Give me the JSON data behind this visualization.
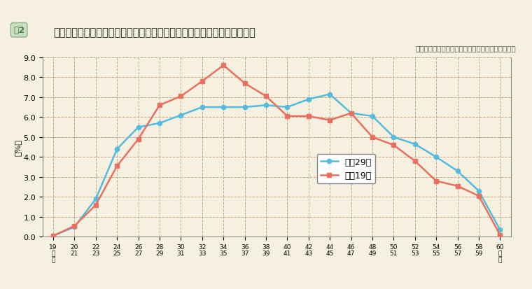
{
  "title": "年齢階層別人員構成比（行政職俸給表（一）適用職員）の変化（本府省）",
  "subtitle": "（人事院　国家公務員給与等実態調査により集計）",
  "ylabel": "（%）",
  "fig2_label": "図2",
  "ylim": [
    0.0,
    9.0
  ],
  "yticks": [
    0.0,
    1.0,
    2.0,
    3.0,
    4.0,
    5.0,
    6.0,
    7.0,
    8.0,
    9.0
  ],
  "x_labels": [
    "19\n以\n下",
    "20\n21",
    "22\n23",
    "24\n25",
    "26\n27",
    "28\n29",
    "30\n31",
    "32\n33",
    "34\n35",
    "36\n37",
    "38\n39",
    "40\n41",
    "42\n43",
    "44\n45",
    "46\n47",
    "48\n49",
    "50\n51",
    "52\n53",
    "54\n55",
    "56\n57",
    "58\n59",
    "60\n以\n上"
  ],
  "series_h29": {
    "label": "平成29年",
    "color": "#55BBDD",
    "marker": "o",
    "values": [
      0.05,
      0.5,
      1.9,
      4.4,
      5.5,
      5.7,
      6.1,
      6.5,
      6.5,
      6.5,
      6.6,
      6.5,
      6.9,
      7.15,
      6.2,
      6.05,
      5.0,
      4.65,
      4.0,
      3.3,
      2.3,
      0.35
    ]
  },
  "series_h19": {
    "label": "平成19年",
    "color": "#E87060",
    "marker": "s",
    "values": [
      0.05,
      0.55,
      1.6,
      3.55,
      4.9,
      6.6,
      7.05,
      7.8,
      8.6,
      7.7,
      7.05,
      6.05,
      6.05,
      5.85,
      6.2,
      5.0,
      4.6,
      3.8,
      2.8,
      2.55,
      2.05,
      0.1
    ]
  },
  "background_color": "#F5F0E0",
  "plot_bg_color": "#F5F0E0",
  "grid_color": "#C8A882",
  "legend_box_color": "#FFFFFF",
  "fig2_bg_color": "#A8C8A0",
  "fig2_text_color": "#4A7A4A"
}
